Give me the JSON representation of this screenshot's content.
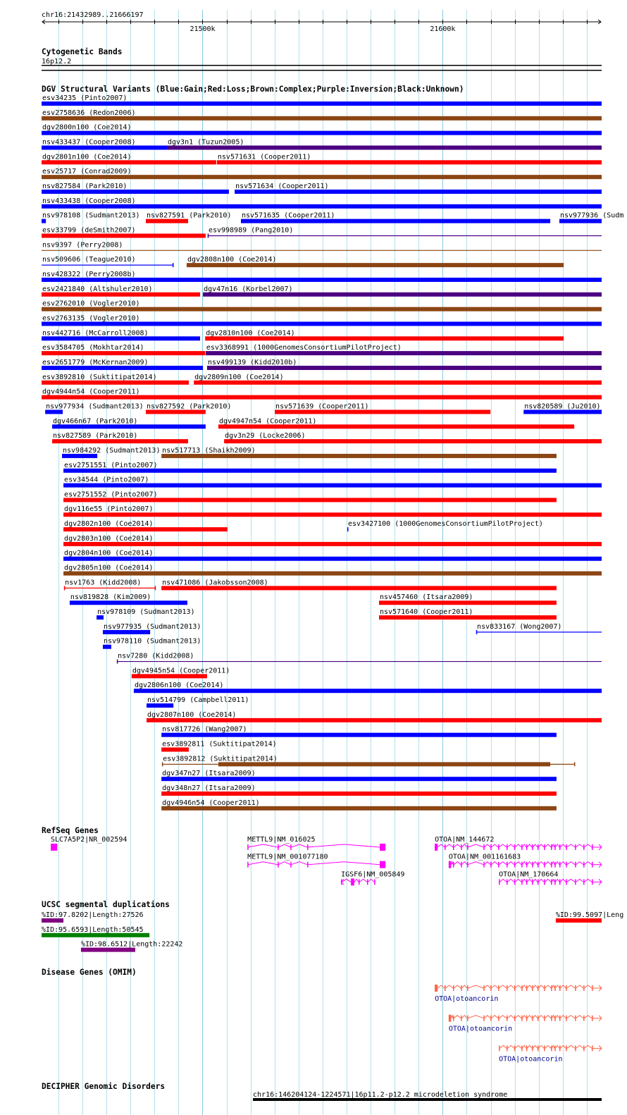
{
  "ruler": {
    "range_label": "chr16:21432989..21666197",
    "view_start_kb": 21432.989,
    "view_end_kb": 21666.197,
    "major_ticks": [
      {
        "kb": 21500,
        "label": "21500k"
      },
      {
        "kb": 21600,
        "label": "21600k"
      }
    ]
  },
  "colors": {
    "gain": "#0000ff",
    "loss": "#ff0000",
    "complex": "#8b4513",
    "inversion": "#4b0082",
    "gene": "#ff00ff",
    "omim": "#ff6347",
    "purple": "#800080",
    "green": "#008000",
    "red": "#ff0000",
    "decipher": "#000000"
  },
  "cytoband": {
    "title": "Cytogenetic Bands",
    "band": "16p12.2"
  },
  "dgv": {
    "title": "DGV Structural Variants (Blue:Gain;Red:Loss;Brown:Complex;Purple:Inversion;Black:Unknown)",
    "feature_fields": [
      "label",
      "start_kb",
      "end_kb",
      "type",
      "style",
      "thick_start_kb",
      "thick_end_kb"
    ],
    "rows": [
      [
        [
          "esv34235 (Pinto2007)",
          21433.0,
          21666.2,
          "gain",
          "bar"
        ]
      ],
      [
        [
          "esv2758636 (Redon2006)",
          21433.0,
          21666.2,
          "complex",
          "bar"
        ]
      ],
      [
        [
          "dgv2800n100 (Coe2014)",
          21433.0,
          21666.2,
          "gain",
          "bar"
        ]
      ],
      [
        [
          "nsv433437 (Cooper2008)",
          21433.0,
          21485.2,
          "gain",
          "bar"
        ],
        [
          "dgv3n1 (Tuzun2005)",
          21485.2,
          21666.2,
          "inversion",
          "bar"
        ]
      ],
      [
        [
          "dgv2801n100 (Coe2014)",
          21433.0,
          21505.7,
          "loss",
          "bar"
        ],
        [
          "nsv571631 (Cooper2011)",
          21506.0,
          21666.2,
          "loss",
          "bar"
        ]
      ],
      [
        [
          "esv25717 (Conrad2009)",
          21433.0,
          21666.2,
          "complex",
          "bar"
        ]
      ],
      [
        [
          "nsv827584 (Park2010)",
          21433.0,
          21511.0,
          "gain",
          "bar"
        ],
        [
          "nsv571634 (Cooper2011)",
          21513.4,
          21666.2,
          "gain",
          "bar"
        ]
      ],
      [
        [
          "nsv433438 (Cooper2008)",
          21433.0,
          21666.2,
          "gain",
          "bar"
        ]
      ],
      [
        [
          "nsv978108 (Sudmant2013)",
          21433.0,
          21434.8,
          "gain",
          "bar"
        ],
        [
          "nsv827591 (Park2010)",
          21476.4,
          21494.0,
          "loss",
          "bar"
        ],
        [
          "nsv571635 (Cooper2011)",
          21516.0,
          21644.8,
          "gain",
          "bar"
        ],
        [
          "nsv977936 (Sudm",
          21648.6,
          21666.2,
          "gain",
          "bar"
        ]
      ],
      [
        [
          "esv33799 (deSmith2007)",
          21433.0,
          21501.3,
          "loss",
          "bar"
        ],
        [
          "esv998989 (Pang2010)",
          21502.2,
          21666.2,
          "inversion",
          "line"
        ]
      ],
      [
        [
          "nsv9397 (Perry2008)",
          21433.0,
          21666.2,
          "complex",
          "line"
        ]
      ],
      [
        [
          "nsv509606 (Teague2010)",
          21433.0,
          21487.9,
          "gain",
          "line"
        ],
        [
          "dgv2808n100 (Coe2014)",
          21493.4,
          21650.4,
          "complex",
          "bar"
        ]
      ],
      [
        [
          "nsv428322 (Perry2008b)",
          21433.0,
          21666.2,
          "gain",
          "bar"
        ]
      ],
      [
        [
          "esv2421840 (Altshuler2010)",
          21433.0,
          21499.0,
          "loss",
          "bar"
        ],
        [
          "dgv47n16 (Korbel2007)",
          21500.2,
          21666.2,
          "inversion",
          "bar"
        ]
      ],
      [
        [
          "esv2762010 (Vogler2010)",
          21433.0,
          21666.2,
          "complex",
          "bar"
        ]
      ],
      [
        [
          "esv2763135 (Vogler2010)",
          21433.0,
          21666.2,
          "gain",
          "bar"
        ]
      ],
      [
        [
          "nsv442716 (McCarroll2008)",
          21433.0,
          21499.0,
          "gain",
          "bar"
        ],
        [
          "dgv2810n100 (Coe2014)",
          21501.1,
          21650.4,
          "loss",
          "bar"
        ]
      ],
      [
        [
          "esv3584705 (Mokhtar2014)",
          21433.0,
          21501.1,
          "loss",
          "bar"
        ],
        [
          "esv3368991 (1000GenomesConsortiumPilotProject)",
          21501.3,
          21666.2,
          "inversion",
          "bar"
        ]
      ],
      [
        [
          "esv2651779 (McKernan2009)",
          21433.0,
          21500.2,
          "gain",
          "bar"
        ],
        [
          "nsv499139 (Kidd2010b)",
          21501.9,
          21666.2,
          "inversion",
          "bar"
        ]
      ],
      [
        [
          "esv3892810 (Suktitipat2014)",
          21433.0,
          21494.3,
          "loss",
          "bar"
        ],
        [
          "dgv2809n100 (Coe2014)",
          21496.4,
          21666.2,
          "loss",
          "bar"
        ]
      ],
      [
        [
          "dgv4944n54 (Cooper2011)",
          21433.0,
          21666.2,
          "loss",
          "bar"
        ]
      ],
      [
        [
          "nsv977934 (Sudmant2013)",
          21434.5,
          21441.8,
          "gain",
          "bar"
        ],
        [
          "nsv827592 (Park2010)",
          21476.4,
          21501.3,
          "loss",
          "bar"
        ],
        [
          "nsv571639 (Cooper2011)",
          21530.1,
          21619.9,
          "loss",
          "bar"
        ],
        [
          "nsv820589 (Ju2010)",
          21633.7,
          21666.2,
          "gain",
          "bar"
        ]
      ],
      [
        [
          "dgv466n67 (Park2010)",
          21437.4,
          21501.3,
          "gain",
          "bar"
        ],
        [
          "dgv4947n54 (Cooper2011)",
          21506.6,
          21654.8,
          "loss",
          "bar"
        ]
      ],
      [
        [
          "nsv827589 (Park2010)",
          21437.4,
          21494.0,
          "loss",
          "bar"
        ],
        [
          "dgv3n29 (Locke2006)",
          21509.0,
          21666.2,
          "loss",
          "bar"
        ]
      ],
      [
        [
          "nsv984292 (Sudmant2013)",
          21441.5,
          21456.2,
          "gain",
          "bar"
        ],
        [
          "nsv517713 (Shaikh2009)",
          21482.9,
          21647.4,
          "complex",
          "bar"
        ]
      ],
      [
        [
          "esv2751551 (Pinto2007)",
          21442.1,
          21647.4,
          "gain",
          "bar"
        ]
      ],
      [
        [
          "esv34544 (Pinto2007)",
          21442.1,
          21666.2,
          "gain",
          "bar"
        ]
      ],
      [
        [
          "esv2751552 (Pinto2007)",
          21442.1,
          21647.4,
          "loss",
          "bar"
        ]
      ],
      [
        [
          "dgv116e55 (Pinto2007)",
          21442.1,
          21666.2,
          "loss",
          "bar"
        ]
      ],
      [
        [
          "dgv2802n100 (Coe2014)",
          21442.1,
          21510.4,
          "loss",
          "bar"
        ],
        [
          "esv3427100 (1000GenomesConsortiumPilotProject)",
          21560.3,
          21560.6,
          "gain",
          "bar"
        ]
      ],
      [
        [
          "dgv2803n100 (Coe2014)",
          21442.1,
          21666.2,
          "loss",
          "bar"
        ]
      ],
      [
        [
          "dgv2804n100 (Coe2014)",
          21442.1,
          21666.2,
          "gain",
          "bar"
        ]
      ],
      [
        [
          "dgv2805n100 (Coe2014)",
          21442.1,
          21666.2,
          "complex",
          "bar"
        ]
      ],
      [
        [
          "nsv1763 (Kidd2008)",
          21442.4,
          21480.5,
          "loss",
          "line"
        ],
        [
          "nsv471086 (Jakobsson2008)",
          21482.9,
          21647.4,
          "loss",
          "bar"
        ]
      ],
      [
        [
          "nsv819828 (Kim2009)",
          21444.7,
          21493.7,
          "gain",
          "bar"
        ],
        [
          "nsv457460 (Itsara2009)",
          21573.5,
          21647.4,
          "loss",
          "bar"
        ]
      ],
      [
        [
          "nsv978109 (Sudmant2013)",
          21455.9,
          21458.8,
          "gain",
          "bar"
        ],
        [
          "nsv571640 (Cooper2011)",
          21573.5,
          21647.4,
          "loss",
          "bar"
        ]
      ],
      [
        [
          "nsv977935 (Sudmant2013)",
          21458.5,
          21478.2,
          "gain",
          "bar"
        ],
        [
          "nsv833167 (Wong2007)",
          21614.0,
          21666.2,
          "gain",
          "line"
        ]
      ],
      [
        [
          "nsv978110 (Sudmant2013)",
          21458.5,
          21462.0,
          "gain",
          "bar"
        ]
      ],
      [
        [
          "nsv7280 (Kidd2008)",
          21464.4,
          21666.2,
          "inversion",
          "line"
        ]
      ],
      [
        [
          "dgv4945n54 (Cooper2011)",
          21470.5,
          21501.9,
          "loss",
          "bar"
        ]
      ],
      [
        [
          "dgv2806n100 (Coe2014)",
          21471.4,
          21666.2,
          "gain",
          "bar"
        ]
      ],
      [
        [
          "nsv514799 (Campbell2011)",
          21476.7,
          21487.9,
          "gain",
          "bar"
        ]
      ],
      [
        [
          "dgv2807n100 (Coe2014)",
          21476.7,
          21666.2,
          "loss",
          "bar"
        ]
      ],
      [
        [
          "nsv817726 (Wang2007)",
          21482.9,
          21647.4,
          "gain",
          "bar"
        ]
      ],
      [
        [
          "esv3892811 (Suktitipat2014)",
          21482.9,
          21494.3,
          "loss",
          "bar"
        ]
      ],
      [
        [
          "esv3892812 (Suktitipat2014)",
          21483.2,
          21655.1,
          "complex",
          "line",
          21506.6,
          21644.8
        ]
      ],
      [
        [
          "dgv347n27 (Itsara2009)",
          21482.9,
          21647.4,
          "gain",
          "bar"
        ]
      ],
      [
        [
          "dgv348n27 (Itsara2009)",
          21482.9,
          21647.4,
          "loss",
          "bar"
        ]
      ],
      [
        [
          "dgv4946n54 (Cooper2011)",
          21482.9,
          21647.4,
          "complex",
          "bar"
        ]
      ]
    ]
  },
  "refseq": {
    "title": "RefSeq Genes",
    "genes": [
      {
        "label": "SLC7A5P2|NR_002594",
        "row": 0,
        "start_kb": 21436.8,
        "end_kb": 21439.5,
        "strand": "",
        "blocks": [
          [
            21436.8,
            21439.5
          ]
        ],
        "exons": []
      },
      {
        "label": "METTL9|NM_016025",
        "row": 0,
        "start_kb": 21518.7,
        "end_kb": 21576.2,
        "strand": "",
        "blocks": [
          [
            21573.8,
            21576.2
          ]
        ],
        "exons": [
          21518.7,
          21531.3,
          21536.6,
          21543.6
        ]
      },
      {
        "label": "METTL9|NM_001077180",
        "row": 1,
        "start_kb": 21518.7,
        "end_kb": 21576.2,
        "strand": "",
        "blocks": [
          [
            21573.8,
            21576.2
          ]
        ],
        "exons": [
          21518.7,
          21531.3,
          21536.6,
          21543.6
        ]
      },
      {
        "label": "IGSF6|NM_005849",
        "row": 2,
        "start_kb": 21557.7,
        "end_kb": 21571.5,
        "strand": "-",
        "blocks": [
          [
            21561.8,
            21563.2
          ]
        ],
        "exons": [
          21565.0,
          21568.5,
          21571.5
        ]
      },
      {
        "label": "OTOA|NM_144672",
        "row": 0,
        "start_kb": 21596.7,
        "end_kb": 21666.2,
        "strand": "+",
        "blocks": [
          [
            21596.7,
            21597.9
          ]
        ],
        "exons": [
          21600.8,
          21604.3,
          21607.6,
          21610.2,
          21617.0,
          21619.9,
          21623.1,
          21626.6,
          21629.8,
          21632.8,
          21634.8,
          21637.2,
          21639.5,
          21642.2,
          21645.1,
          21646.6,
          21648.6,
          21651.3,
          21655.1,
          21658.6,
          21662.1
        ]
      },
      {
        "label": "OTOA|NM_001161683",
        "row": 1,
        "start_kb": 21602.5,
        "end_kb": 21666.2,
        "strand": "+",
        "blocks": [
          [
            21602.5,
            21603.5
          ]
        ],
        "exons": [
          21604.3,
          21607.6,
          21610.2,
          21617.0,
          21619.9,
          21623.1,
          21626.6,
          21629.8,
          21632.8,
          21634.8,
          21637.2,
          21639.5,
          21642.2,
          21645.1,
          21646.6,
          21648.6,
          21651.3,
          21655.1,
          21658.6,
          21662.1
        ]
      },
      {
        "label": "OTOA|NM_170664",
        "row": 2,
        "start_kb": 21623.4,
        "end_kb": 21666.2,
        "strand": "+",
        "blocks": [],
        "exons": [
          21623.4,
          21626.6,
          21629.8,
          21632.8,
          21634.8,
          21637.2,
          21639.5,
          21642.2,
          21645.1,
          21646.6,
          21648.6,
          21651.3,
          21655.1,
          21658.6,
          21662.1
        ]
      }
    ]
  },
  "segdups": {
    "title": "UCSC segmental duplications",
    "items": [
      {
        "label": "%ID:97.8202|Length:27526",
        "row": 0,
        "start_kb": 21433.0,
        "end_kb": 21442.1,
        "color": "purple"
      },
      {
        "label": "%ID:99.5097|Leng",
        "row": 0,
        "start_kb": 21647.1,
        "end_kb": 21666.2,
        "color": "red"
      },
      {
        "label": "%ID:95.6593|Length:50545",
        "row": 1,
        "start_kb": 21433.0,
        "end_kb": 21477.9,
        "color": "green"
      },
      {
        "label": "%ID:98.6512|Length:22242",
        "row": 2,
        "start_kb": 21449.4,
        "end_kb": 21472.0,
        "color": "purple"
      }
    ]
  },
  "omim": {
    "title": "Disease Genes (OMIM)",
    "genes": [
      {
        "label": "OTOA|otoancorin",
        "row": 0,
        "start_kb": 21596.7,
        "end_kb": 21666.2,
        "strand": "+",
        "blocks": [
          [
            21596.7,
            21597.9
          ]
        ],
        "exons": [
          21600.8,
          21604.3,
          21607.6,
          21610.2,
          21617.0,
          21619.9,
          21623.1,
          21626.6,
          21629.8,
          21632.8,
          21634.8,
          21637.2,
          21639.5,
          21642.2,
          21645.1,
          21646.6,
          21648.6,
          21651.3,
          21655.1,
          21658.6,
          21662.1
        ]
      },
      {
        "label": "OTOA|otoancorin",
        "row": 1,
        "start_kb": 21602.5,
        "end_kb": 21666.2,
        "strand": "+",
        "blocks": [
          [
            21602.5,
            21603.5
          ]
        ],
        "exons": [
          21604.3,
          21607.6,
          21610.2,
          21617.0,
          21619.9,
          21623.1,
          21626.6,
          21629.8,
          21632.8,
          21634.8,
          21637.2,
          21639.5,
          21642.2,
          21645.1,
          21646.6,
          21648.6,
          21651.3,
          21655.1,
          21658.6,
          21662.1
        ]
      },
      {
        "label": "OTOA|otoancorin",
        "row": 2,
        "start_kb": 21623.4,
        "end_kb": 21666.2,
        "strand": "+",
        "blocks": [],
        "exons": [
          21623.4,
          21626.6,
          21629.8,
          21632.8,
          21634.8,
          21637.2,
          21639.5,
          21642.2,
          21645.1,
          21646.6,
          21648.6,
          21651.3,
          21655.1,
          21658.6,
          21662.1
        ]
      }
    ]
  },
  "decipher": {
    "title": "DECIPHER Genomic Disorders",
    "items": [
      {
        "label": "chr16:146204124-1224571|16p11.2-p12.2 microdeletion syndrome",
        "start_kb": 21521.0,
        "end_kb": 21666.2
      }
    ]
  }
}
